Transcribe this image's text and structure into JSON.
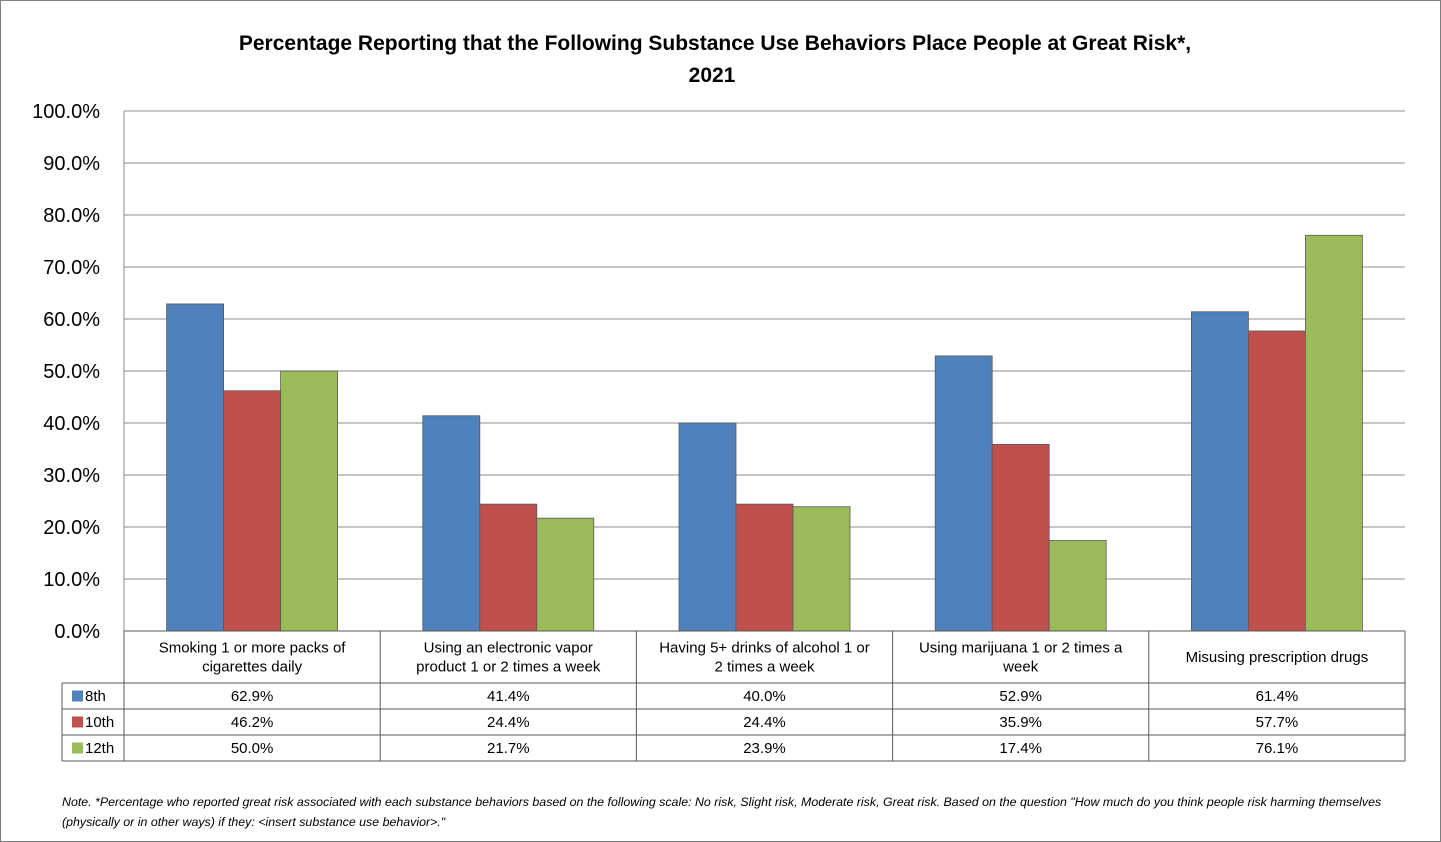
{
  "chart_data": {
    "type": "bar",
    "title": "Percentage Reporting that the Following Substance Use Behaviors Place People at Great Risk*,",
    "subtitle": "2021",
    "ylim": [
      0,
      100
    ],
    "yticks": [
      "0.0%",
      "10.0%",
      "20.0%",
      "30.0%",
      "40.0%",
      "50.0%",
      "60.0%",
      "70.0%",
      "80.0%",
      "90.0%",
      "100.0%"
    ],
    "grid": true,
    "legend": "data-table-left",
    "categories": [
      [
        "Smoking 1 or more packs of",
        "cigarettes daily"
      ],
      [
        "Using an electronic vapor",
        "product 1 or 2 times a week"
      ],
      [
        "Having 5+ drinks of alcohol 1 or",
        "2 times a week"
      ],
      [
        "Using marijuana 1 or 2 times a",
        "week"
      ],
      [
        "Misusing prescription drugs"
      ]
    ],
    "series": [
      {
        "name": "8th",
        "color": "#4f81bd",
        "values": [
          62.9,
          41.4,
          40.0,
          52.9,
          61.4
        ],
        "labels": [
          "62.9%",
          "41.4%",
          "40.0%",
          "52.9%",
          "61.4%"
        ]
      },
      {
        "name": "10th",
        "color": "#c0504d",
        "values": [
          46.2,
          24.4,
          24.4,
          35.9,
          57.7
        ],
        "labels": [
          "46.2%",
          "24.4%",
          "24.4%",
          "35.9%",
          "57.7%"
        ]
      },
      {
        "name": "12th",
        "color": "#9bbb59",
        "values": [
          50.0,
          21.7,
          23.9,
          17.4,
          76.1
        ],
        "labels": [
          "50.0%",
          "21.7%",
          "23.9%",
          "17.4%",
          "76.1%"
        ]
      }
    ]
  },
  "note": "Note. *Percentage who reported great risk associated with each substance behaviors based on the following scale: No risk, Slight risk, Moderate risk, Great risk.  Based on the question \"How much do you think people risk harming themselves (physically or in other ways) if they: <insert substance use behavior>.\""
}
